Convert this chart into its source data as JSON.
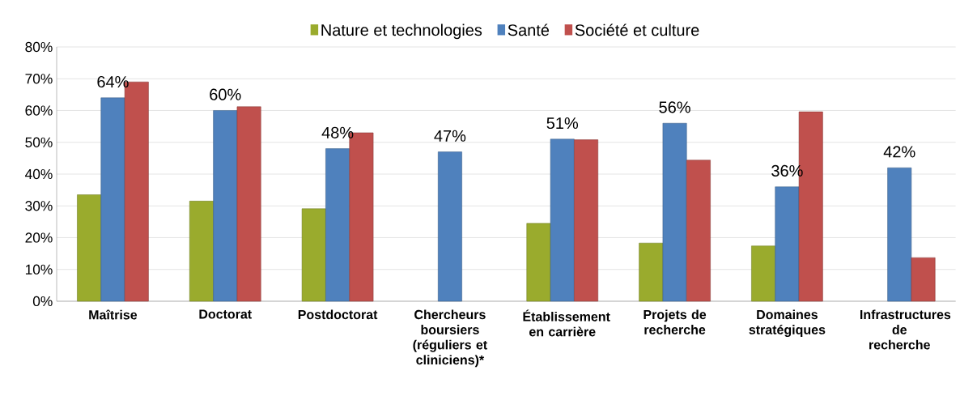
{
  "chart_data": {
    "type": "bar",
    "categories": [
      "Maîtrise",
      "Doctorat",
      "Postdoctorat",
      "Chercheurs boursiers (réguliers et cliniciens)*",
      "Établissement en carrière",
      "Projets de recherche",
      "Domaines stratégiques",
      "Infrastructures de recherche"
    ],
    "series": [
      {
        "name": "Nature et technologies",
        "color": "#9aab2d",
        "values": [
          33.5,
          31.5,
          29.1,
          null,
          24.5,
          18.3,
          17.4,
          null
        ]
      },
      {
        "name": "Santé",
        "color": "#4f81bd",
        "values": [
          64,
          60,
          48,
          47,
          51,
          56,
          36,
          42
        ],
        "value_labels": [
          "64%",
          "60%",
          "48%",
          "47%",
          "51%",
          "56%",
          "36%",
          "42%"
        ]
      },
      {
        "name": "Société et culture",
        "color": "#c0504d",
        "values": [
          69,
          61.2,
          53,
          null,
          50.8,
          44.4,
          59.6,
          13.7
        ]
      }
    ],
    "ylim": [
      0,
      80
    ],
    "yticks": [
      {
        "value": 0,
        "label": "0%"
      },
      {
        "value": 10,
        "label": "10%"
      },
      {
        "value": 20,
        "label": "20%"
      },
      {
        "value": 30,
        "label": "30%"
      },
      {
        "value": 40,
        "label": "40%"
      },
      {
        "value": 50,
        "label": "50%"
      },
      {
        "value": 60,
        "label": "60%"
      },
      {
        "value": 70,
        "label": "70%"
      },
      {
        "value": 80,
        "label": "80%"
      }
    ],
    "grid": "y",
    "legend": "top"
  }
}
